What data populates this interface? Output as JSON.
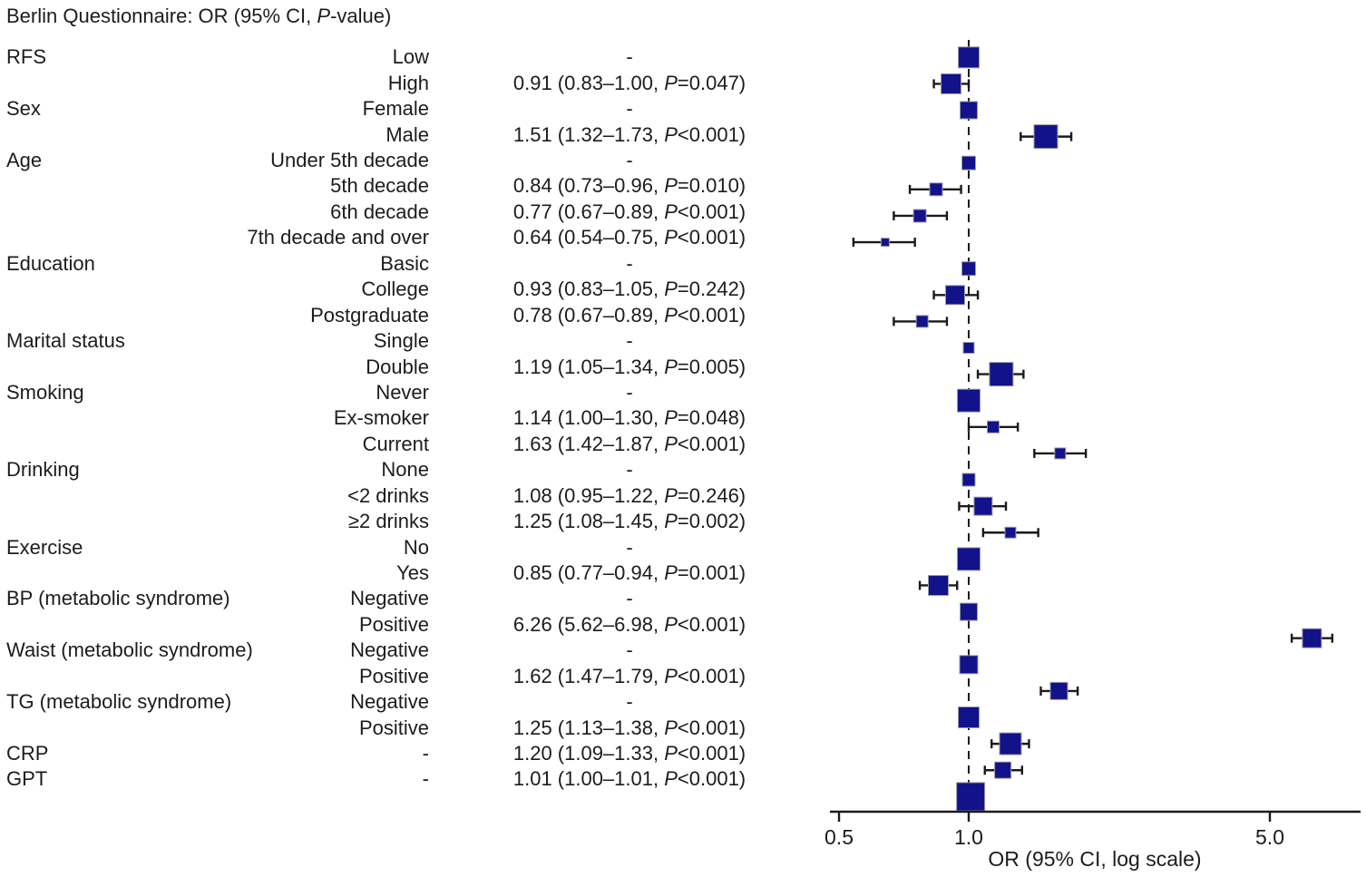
{
  "title": "Berlin Questionnaire: OR (95% CI, P-value)",
  "chart_data": {
    "type": "forest",
    "scale": "log",
    "x_axis": {
      "label": "OR (95% CI, log scale)",
      "ticks": [
        0.5,
        1.0,
        5.0
      ],
      "tick_labels": [
        "0.5",
        "1.0",
        "5.0"
      ],
      "range": [
        0.47,
        8.2
      ],
      "reference_line": 1.0
    },
    "marker_color": "#12128A",
    "marker_border_color": "#9b9bab",
    "line_color": "#1a1a1a",
    "rows": [
      {
        "group": "RFS",
        "category": "Low",
        "value_text": "-",
        "or": 1.0,
        "ci_low": null,
        "ci_high": null,
        "reference": true,
        "size": 23
      },
      {
        "group": "",
        "category": "High",
        "value_text": "0.91 (0.83–1.00, P=0.047)",
        "or": 0.91,
        "ci_low": 0.83,
        "ci_high": 1.0,
        "reference": false,
        "size": 22
      },
      {
        "group": "Sex",
        "category": "Female",
        "value_text": "-",
        "or": 1.0,
        "ci_low": null,
        "ci_high": null,
        "reference": true,
        "size": 19
      },
      {
        "group": "",
        "category": "Male",
        "value_text": "1.51 (1.32–1.73, P<0.001)",
        "or": 1.51,
        "ci_low": 1.32,
        "ci_high": 1.73,
        "reference": false,
        "size": 26
      },
      {
        "group": "Age",
        "category": "Under 5th decade",
        "value_text": "-",
        "or": 1.0,
        "ci_low": null,
        "ci_high": null,
        "reference": true,
        "size": 15
      },
      {
        "group": "",
        "category": "5th decade",
        "value_text": "0.84 (0.73–0.96, P=0.010)",
        "or": 0.84,
        "ci_low": 0.73,
        "ci_high": 0.96,
        "reference": false,
        "size": 14
      },
      {
        "group": "",
        "category": "6th decade",
        "value_text": "0.77 (0.67–0.89, P<0.001)",
        "or": 0.77,
        "ci_low": 0.67,
        "ci_high": 0.89,
        "reference": false,
        "size": 14
      },
      {
        "group": "",
        "category": "7th decade and over",
        "value_text": "0.64 (0.54–0.75, P<0.001)",
        "or": 0.64,
        "ci_low": 0.54,
        "ci_high": 0.75,
        "reference": false,
        "size": 9
      },
      {
        "group": "Education",
        "category": "Basic",
        "value_text": "-",
        "or": 1.0,
        "ci_low": null,
        "ci_high": null,
        "reference": true,
        "size": 15
      },
      {
        "group": "",
        "category": "College",
        "value_text": "0.93 (0.83–1.05, P=0.242)",
        "or": 0.93,
        "ci_low": 0.83,
        "ci_high": 1.05,
        "reference": false,
        "size": 21
      },
      {
        "group": "",
        "category": "Postgraduate",
        "value_text": "0.78 (0.67–0.89, P<0.001)",
        "or": 0.78,
        "ci_low": 0.67,
        "ci_high": 0.89,
        "reference": false,
        "size": 13
      },
      {
        "group": "Marital status",
        "category": "Single",
        "value_text": "-",
        "or": 1.0,
        "ci_low": null,
        "ci_high": null,
        "reference": true,
        "size": 12
      },
      {
        "group": "",
        "category": "Double",
        "value_text": "1.19 (1.05–1.34, P=0.005)",
        "or": 1.19,
        "ci_low": 1.05,
        "ci_high": 1.34,
        "reference": false,
        "size": 26
      },
      {
        "group": "Smoking",
        "category": "Never",
        "value_text": "-",
        "or": 1.0,
        "ci_low": null,
        "ci_high": null,
        "reference": true,
        "size": 25
      },
      {
        "group": "",
        "category": "Ex-smoker",
        "value_text": "1.14 (1.00–1.30, P=0.048)",
        "or": 1.14,
        "ci_low": 1.0,
        "ci_high": 1.3,
        "reference": false,
        "size": 13
      },
      {
        "group": "",
        "category": "Current",
        "value_text": "1.63 (1.42–1.87, P<0.001)",
        "or": 1.63,
        "ci_low": 1.42,
        "ci_high": 1.87,
        "reference": false,
        "size": 12
      },
      {
        "group": "Drinking",
        "category": "None",
        "value_text": "-",
        "or": 1.0,
        "ci_low": null,
        "ci_high": null,
        "reference": true,
        "size": 14
      },
      {
        "group": "",
        "category": "<2 drinks",
        "value_text": "1.08 (0.95–1.22, P=0.246)",
        "or": 1.08,
        "ci_low": 0.95,
        "ci_high": 1.22,
        "reference": false,
        "size": 20
      },
      {
        "group": "",
        "category": "≥2 drinks",
        "value_text": "1.25 (1.08–1.45, P=0.002)",
        "or": 1.25,
        "ci_low": 1.08,
        "ci_high": 1.45,
        "reference": false,
        "size": 12
      },
      {
        "group": "Exercise",
        "category": "No",
        "value_text": "-",
        "or": 1.0,
        "ci_low": null,
        "ci_high": null,
        "reference": true,
        "size": 25
      },
      {
        "group": "",
        "category": "Yes",
        "value_text": "0.85 (0.77–0.94, P=0.001)",
        "or": 0.85,
        "ci_low": 0.77,
        "ci_high": 0.94,
        "reference": false,
        "size": 22
      },
      {
        "group": "BP (metabolic syndrome)",
        "category": "Negative",
        "value_text": "-",
        "or": 1.0,
        "ci_low": null,
        "ci_high": null,
        "reference": true,
        "size": 19
      },
      {
        "group": "",
        "category": "Positive",
        "value_text": "6.26 (5.62–6.98, P<0.001)",
        "or": 6.26,
        "ci_low": 5.62,
        "ci_high": 6.98,
        "reference": false,
        "size": 21
      },
      {
        "group": "Waist (metabolic syndrome)",
        "category": "Negative",
        "value_text": "-",
        "or": 1.0,
        "ci_low": null,
        "ci_high": null,
        "reference": true,
        "size": 20
      },
      {
        "group": "",
        "category": "Positive",
        "value_text": "1.62 (1.47–1.79, P<0.001)",
        "or": 1.62,
        "ci_low": 1.47,
        "ci_high": 1.79,
        "reference": false,
        "size": 19
      },
      {
        "group": "TG (metabolic syndrome)",
        "category": "Negative",
        "value_text": "-",
        "or": 1.0,
        "ci_low": null,
        "ci_high": null,
        "reference": true,
        "size": 23
      },
      {
        "group": "",
        "category": "Positive",
        "value_text": "1.25 (1.13–1.38, P<0.001)",
        "or": 1.25,
        "ci_low": 1.13,
        "ci_high": 1.38,
        "reference": false,
        "size": 24
      },
      {
        "group": "CRP",
        "category": "-",
        "value_text": "1.20 (1.09–1.33, P<0.001)",
        "or": 1.2,
        "ci_low": 1.09,
        "ci_high": 1.33,
        "reference": false,
        "size": 18
      },
      {
        "group": "GPT",
        "category": "-",
        "value_text": "1.01 (1.00–1.01, P<0.001)",
        "or": 1.01,
        "ci_low": 1.0,
        "ci_high": 1.01,
        "reference": false,
        "size": 31
      }
    ]
  }
}
